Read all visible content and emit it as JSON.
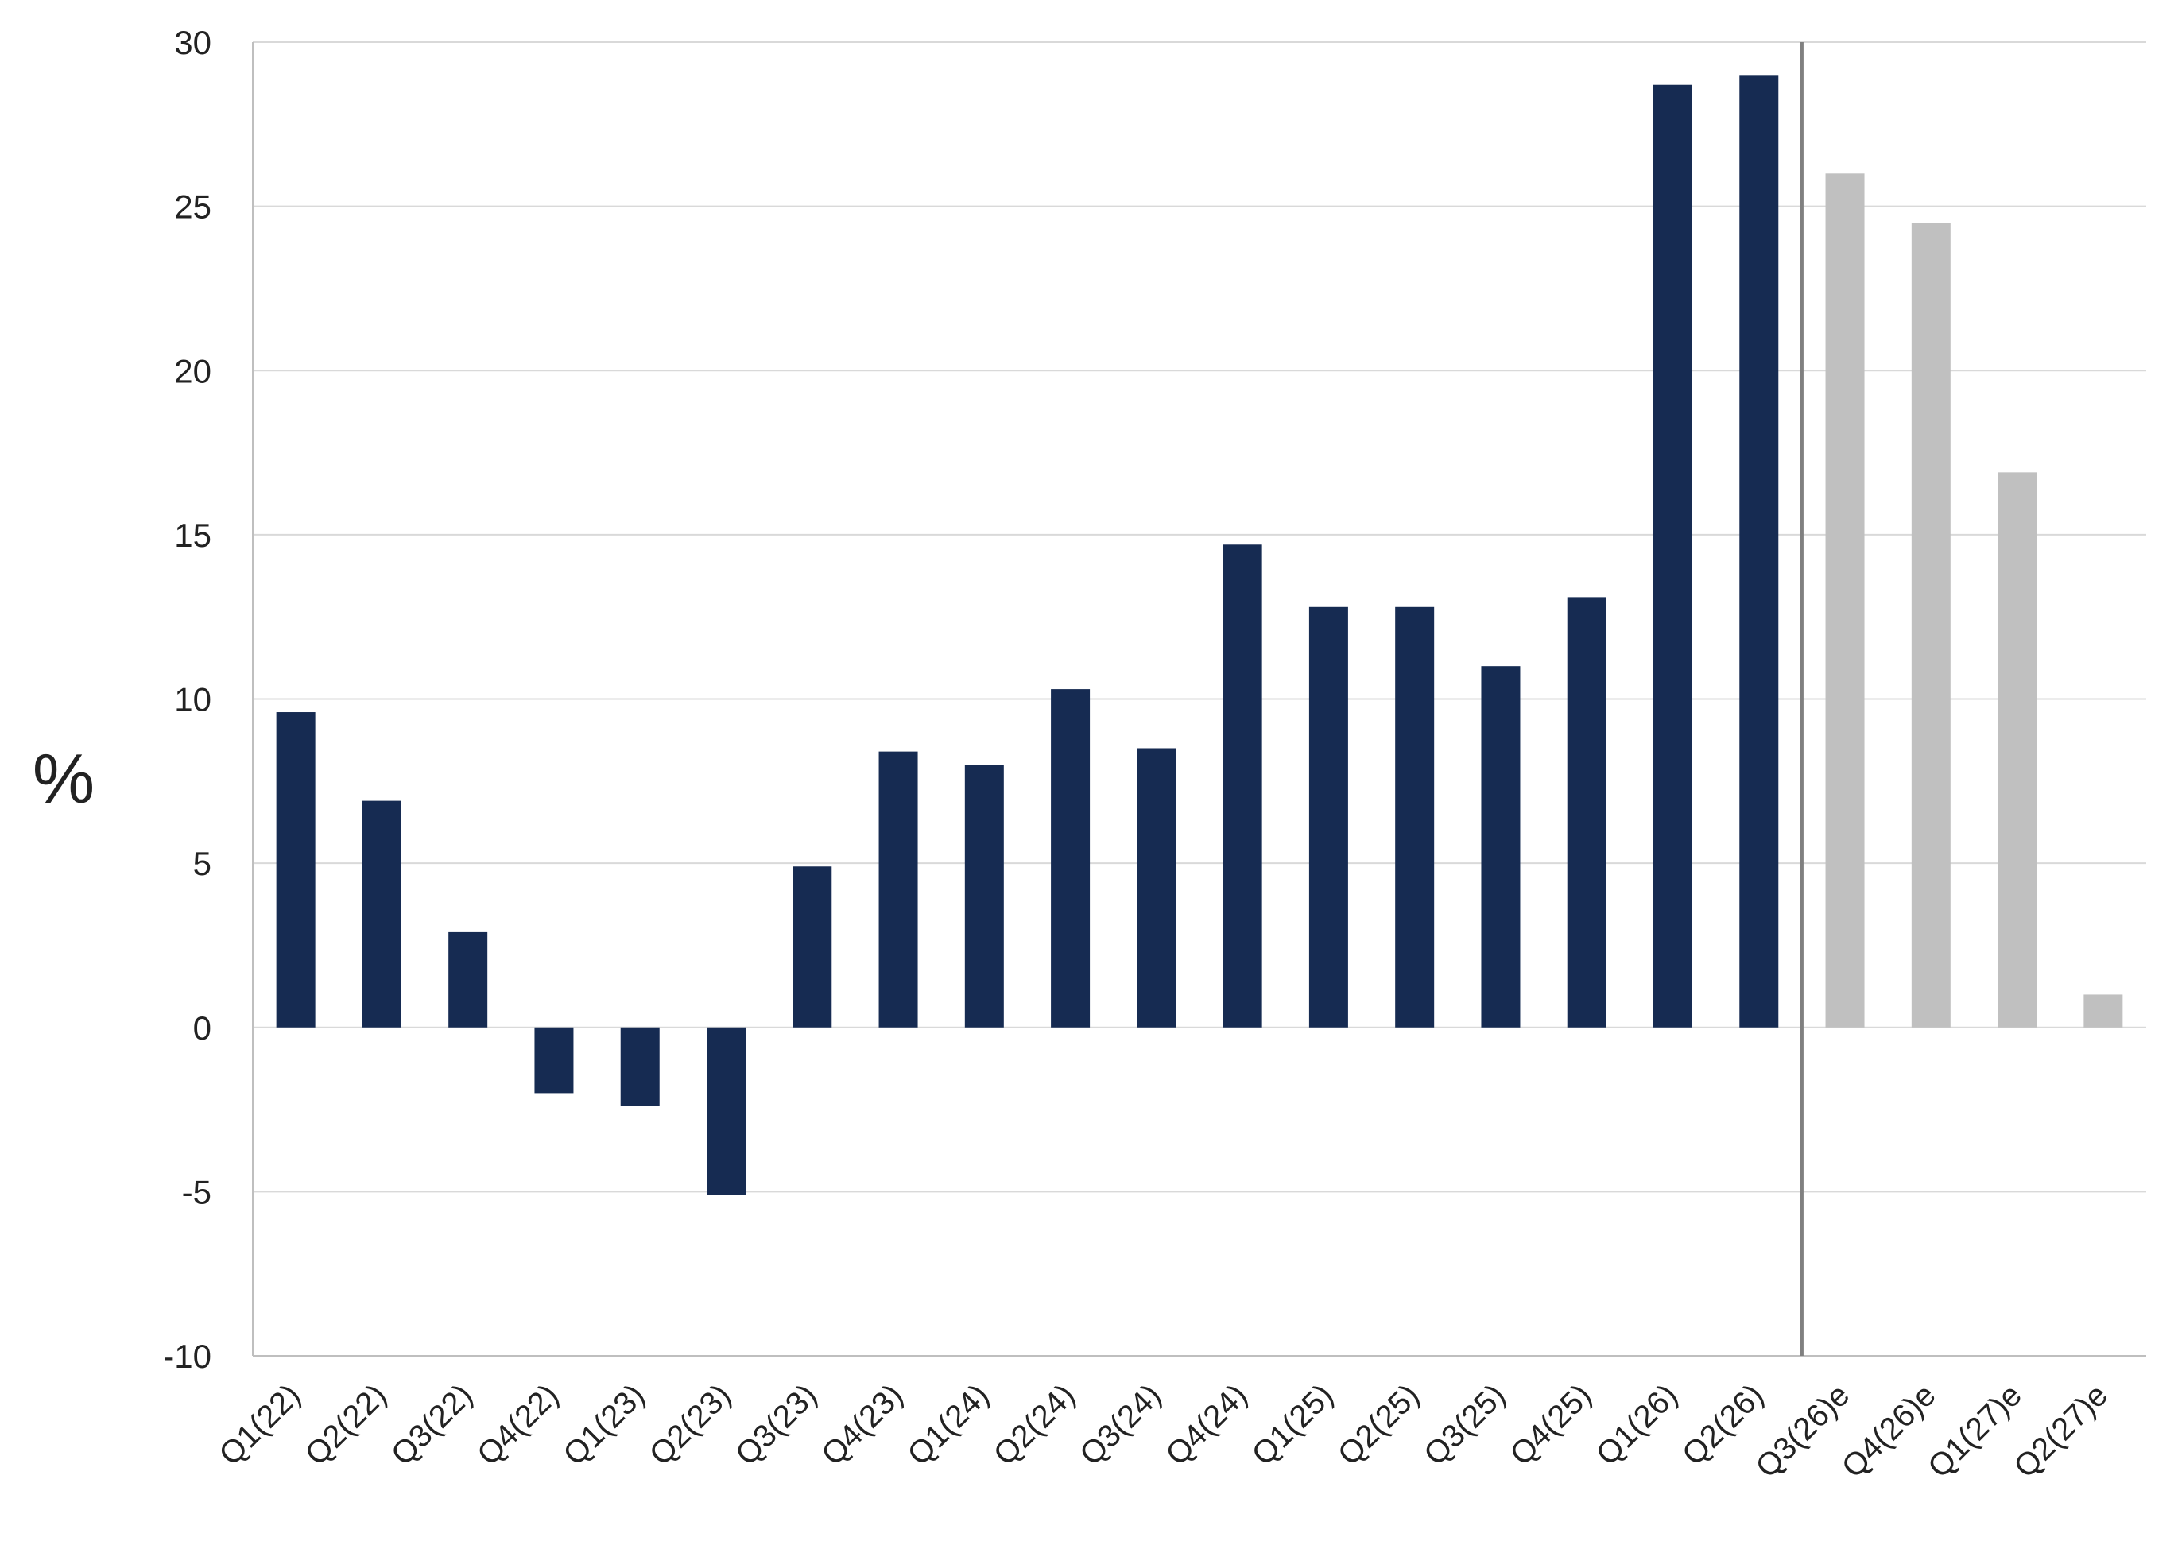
{
  "chart_data": {
    "type": "bar",
    "title": "",
    "xlabel": "",
    "ylabel": "%",
    "ylim": [
      -10,
      30
    ],
    "yticks": [
      -10,
      -5,
      0,
      5,
      10,
      15,
      20,
      25,
      30
    ],
    "grid": true,
    "legend": "none",
    "categories": [
      "Q1(22)",
      "Q2(22)",
      "Q3(22)",
      "Q4(22)",
      "Q1(23)",
      "Q2(23)",
      "Q3(23)",
      "Q4(23)",
      "Q1(24)",
      "Q2(24)",
      "Q3(24)",
      "Q4(24)",
      "Q1(25)",
      "Q2(25)",
      "Q3(25)",
      "Q4(25)",
      "Q1(26)",
      "Q2(26)",
      "Q3(26)e",
      "Q4(26)e",
      "Q1(27)e",
      "Q2(27)e"
    ],
    "values": [
      9.6,
      6.9,
      2.9,
      -2.0,
      -2.4,
      -5.1,
      4.9,
      8.4,
      8.0,
      10.3,
      8.5,
      14.7,
      12.8,
      12.8,
      11.0,
      13.1,
      28.7,
      29.0,
      26.0,
      24.5,
      16.9,
      1.0
    ],
    "forecast_start_category": "Q3(26)e",
    "colors": {
      "actual": "#162b52",
      "estimate": "#c0c0c0",
      "grid": "#d9d9d9",
      "axis": "#bfbfbf",
      "divider": "#808080"
    }
  }
}
